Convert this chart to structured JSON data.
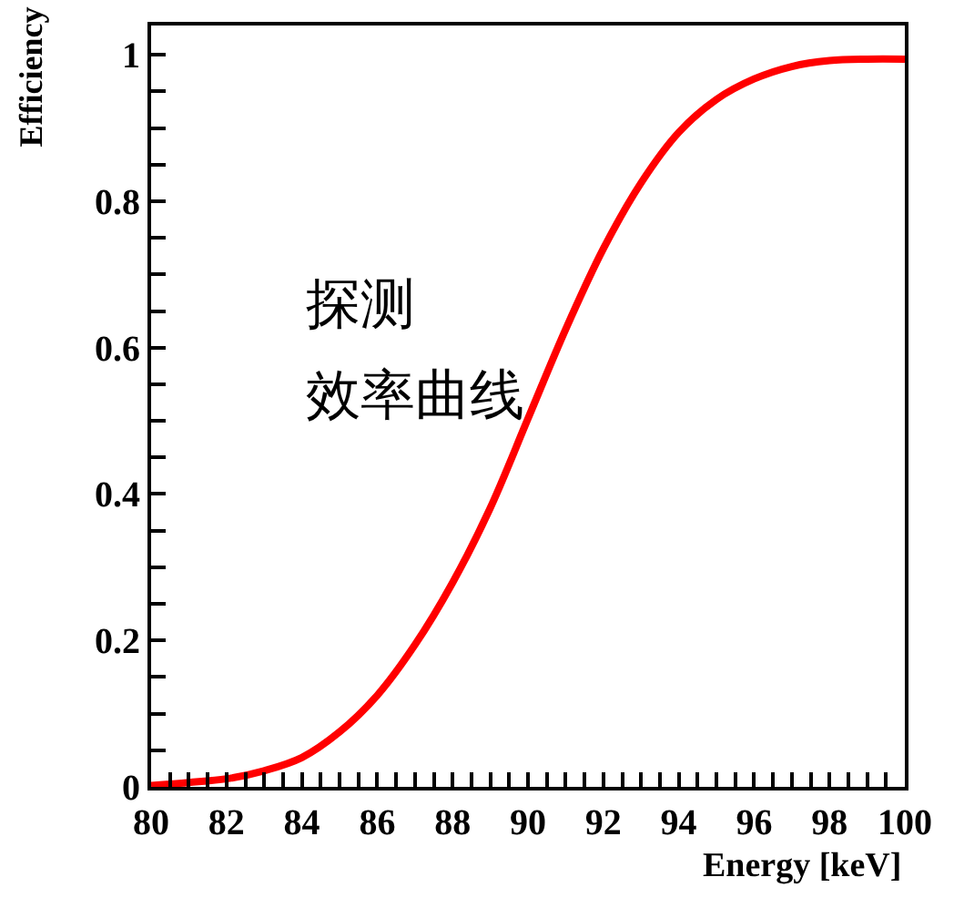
{
  "chart_data": {
    "type": "line",
    "xlabel": "Energy [keV]",
    "ylabel": "Efficiency",
    "annotations": [
      "探测",
      "效率曲线"
    ],
    "x": [
      80,
      81,
      82,
      83,
      84,
      85,
      86,
      87,
      88,
      89,
      90,
      91,
      92,
      93,
      94,
      95,
      96,
      97,
      98,
      99,
      100
    ],
    "series": [
      {
        "color": "#ff0000",
        "values": [
          0.002,
          0.006,
          0.011,
          0.022,
          0.04,
          0.075,
          0.125,
          0.194,
          0.279,
          0.381,
          0.503,
          0.625,
          0.735,
          0.825,
          0.894,
          0.939,
          0.967,
          0.984,
          0.992,
          0.994,
          0.994
        ]
      }
    ],
    "xlim": [
      80,
      100
    ],
    "xticks": [
      80,
      {
        "value": 80.5,
        "label": null
      },
      {
        "value": 81,
        "label": null
      },
      {
        "value": 81.5,
        "label": null
      },
      82,
      {
        "value": 82.5,
        "label": null
      },
      {
        "value": 83,
        "label": null
      },
      {
        "value": 83.5,
        "label": null
      },
      84,
      {
        "value": 84.5,
        "label": null
      },
      {
        "value": 85,
        "label": null
      },
      {
        "value": 85.5,
        "label": null
      },
      86,
      {
        "value": 86.5,
        "label": null
      },
      {
        "value": 87,
        "label": null
      },
      {
        "value": 87.5,
        "label": null
      },
      88,
      {
        "value": 88.5,
        "label": null
      },
      {
        "value": 89,
        "label": null
      },
      {
        "value": 89.5,
        "label": null
      },
      90,
      {
        "value": 90.5,
        "label": null
      },
      {
        "value": 91,
        "label": null
      },
      {
        "value": 91.5,
        "label": null
      },
      92,
      {
        "value": 92.5,
        "label": null
      },
      {
        "value": 93,
        "label": null
      },
      {
        "value": 93.5,
        "label": null
      },
      94,
      {
        "value": 94.5,
        "label": null
      },
      {
        "value": 95,
        "label": null
      },
      {
        "value": 95.5,
        "label": null
      },
      96,
      {
        "value": 96.5,
        "label": null
      },
      {
        "value": 97,
        "label": null
      },
      {
        "value": 97.5,
        "label": null
      },
      98,
      {
        "value": 98.5,
        "label": null
      },
      {
        "value": 99,
        "label": null
      },
      {
        "value": 99.5,
        "label": null
      },
      100
    ],
    "ylim": [
      0,
      1.04
    ],
    "yticks": [
      0,
      {
        "value": 0.05,
        "label": null
      },
      {
        "value": 0.1,
        "label": null
      },
      {
        "value": 0.15,
        "label": null
      },
      0.2,
      {
        "value": 0.25,
        "label": null
      },
      {
        "value": 0.3,
        "label": null
      },
      {
        "value": 0.35,
        "label": null
      },
      0.4,
      {
        "value": 0.45,
        "label": null
      },
      {
        "value": 0.5,
        "label": null
      },
      {
        "value": 0.55,
        "label": null
      },
      0.6,
      {
        "value": 0.65,
        "label": null
      },
      {
        "value": 0.7,
        "label": null
      },
      {
        "value": 0.75,
        "label": null
      },
      0.8,
      {
        "value": 0.85,
        "label": null
      },
      {
        "value": 0.9,
        "label": null
      },
      {
        "value": 0.95,
        "label": null
      },
      1
    ],
    "marker": "none",
    "line_style": "solid"
  }
}
